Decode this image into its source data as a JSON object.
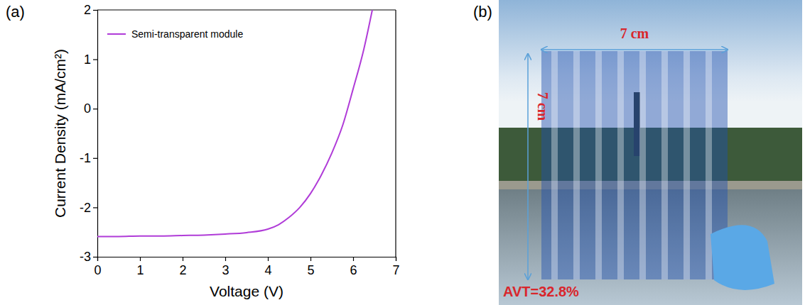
{
  "chart_data": {
    "type": "line",
    "panel_label": "(a)",
    "x_label": "Voltage (V)",
    "y_label": "Current Density (mA/cm²)",
    "x": [
      0,
      0.5,
      1,
      1.5,
      2,
      2.5,
      3,
      3.5,
      4,
      4.25,
      4.5,
      4.75,
      5,
      5.25,
      5.5,
      5.75,
      6,
      6.25,
      6.45
    ],
    "series": [
      {
        "name": "Semi-transparent module",
        "color": "#b03cd8",
        "values": [
          -2.59,
          -2.59,
          -2.58,
          -2.58,
          -2.57,
          -2.56,
          -2.54,
          -2.51,
          -2.44,
          -2.35,
          -2.2,
          -2.0,
          -1.72,
          -1.35,
          -0.9,
          -0.35,
          0.4,
          1.2,
          2.0
        ]
      }
    ],
    "xlim": [
      0,
      7
    ],
    "xticks": [
      0,
      1,
      2,
      3,
      4,
      5,
      6,
      7
    ],
    "ylim": [
      -3,
      2
    ],
    "yticks": [
      -3,
      -2,
      -1,
      0,
      1,
      2
    ],
    "legend": "upper left"
  },
  "photo": {
    "panel_label": "(b)",
    "width_label": "7 cm",
    "height_label": "7 cm",
    "avt_label": "AVT=32.8%"
  }
}
